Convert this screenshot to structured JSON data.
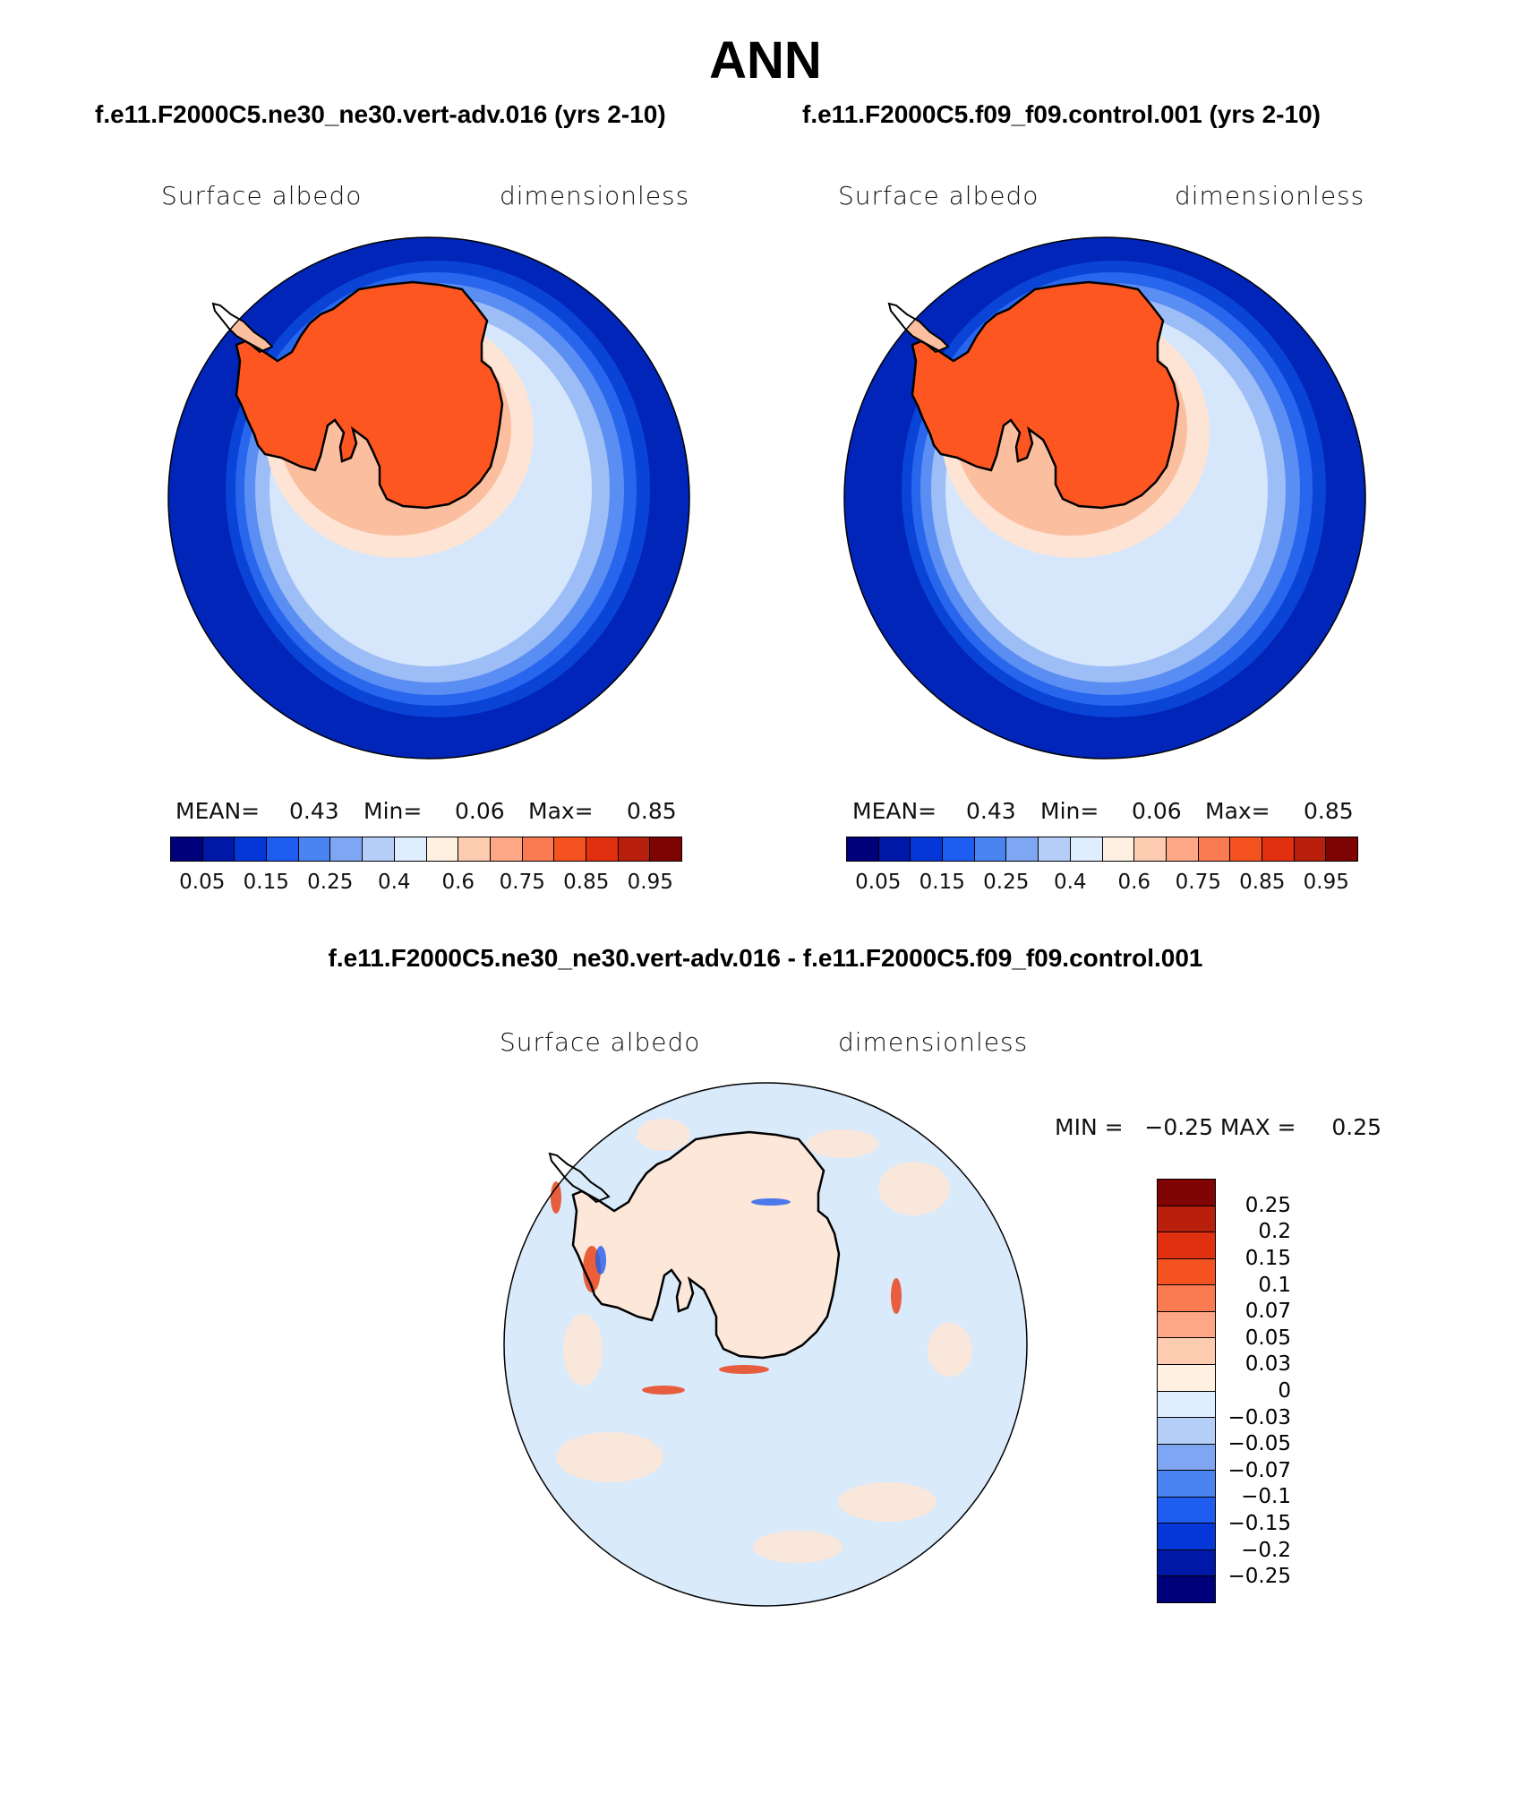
{
  "title": "ANN",
  "panels": [
    {
      "case": "f.e11.F2000C5.ne30_ne30.vert-adv.016 (yrs 2-10)",
      "variable": "Surface albedo",
      "units": "dimensionless",
      "stats": {
        "mean_label": "MEAN=",
        "mean": "0.43",
        "min_label": "Min=",
        "min": "0.06",
        "max_label": "Max=",
        "max": "0.85"
      }
    },
    {
      "case": "f.e11.F2000C5.f09_f09.control.001 (yrs 2-10)",
      "variable": "Surface albedo",
      "units": "dimensionless",
      "stats": {
        "mean_label": "MEAN=",
        "mean": "0.43",
        "min_label": "Min=",
        "min": "0.06",
        "max_label": "Max=",
        "max": "0.85"
      }
    }
  ],
  "colorbar_horizontal": {
    "colors": [
      "#00007a",
      "#0018a8",
      "#0536d8",
      "#1f5cf0",
      "#4a84f0",
      "#7ea6f2",
      "#b5cef8",
      "#dfeeff",
      "#fff0e2",
      "#fdcbb0",
      "#fda786",
      "#fa7a52",
      "#f4531f",
      "#e03010",
      "#b81f0c",
      "#7e0303"
    ],
    "ticks": [
      "0.05",
      "0.15",
      "0.25",
      "0.4",
      "0.6",
      "0.75",
      "0.85",
      "0.95"
    ]
  },
  "difference": {
    "title": "f.e11.F2000C5.ne30_ne30.vert-adv.016 - f.e11.F2000C5.f09_f09.control.001",
    "variable": "Surface albedo",
    "units": "dimensionless",
    "minmax_text": "MIN =   −0.25 MAX =     0.25",
    "colorbar": {
      "colors": [
        "#800404",
        "#b81f0c",
        "#e03010",
        "#f4531f",
        "#fa7a52",
        "#fda786",
        "#fdcbb0",
        "#fff0e2",
        "#dfeeff",
        "#b5cef8",
        "#7ea6f2",
        "#4a84f0",
        "#1f5cf0",
        "#0536d8",
        "#0018a8",
        "#00007a"
      ],
      "ticks": [
        "0.25",
        "0.2",
        "0.15",
        "0.1",
        "0.07",
        "0.05",
        "0.03",
        "0",
        "−0.03",
        "−0.05",
        "−0.07",
        "−0.1",
        "−0.15",
        "−0.2",
        "−0.25"
      ]
    }
  },
  "map_colors": {
    "ocean": "#0025b8",
    "band1": "#0a44d6",
    "band2": "#2966ee",
    "band3": "#5b8ef2",
    "band4": "#9dbdf6",
    "band5": "#d6e7fc",
    "band6": "#fde4d4",
    "band7": "#fbbf9f",
    "land": "#fe5621",
    "diff_bg": "#d9eafb",
    "diff_land": "#fde7d8"
  }
}
